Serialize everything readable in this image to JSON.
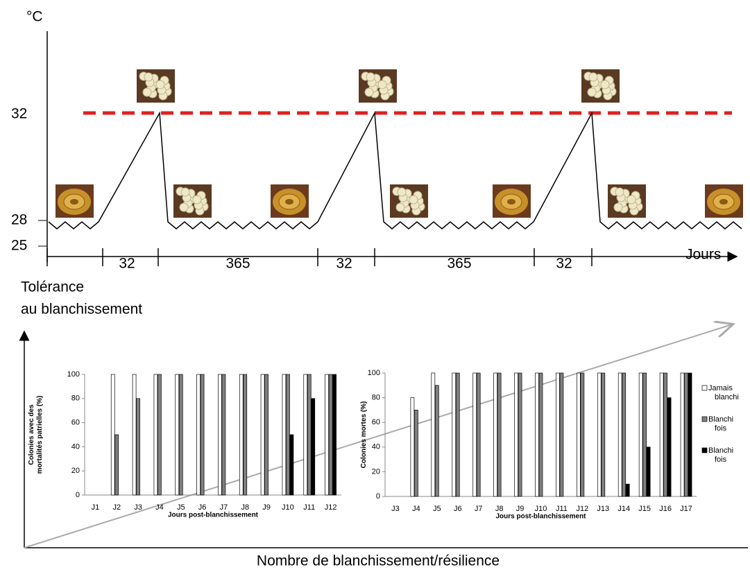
{
  "diagram": {
    "y_unit": "°C",
    "y_labels": [
      "32",
      "28",
      "25"
    ],
    "x_label": "Jours",
    "intervals": [
      "32",
      "365",
      "32",
      "365",
      "32"
    ]
  },
  "bottom": {
    "y_axis_label": [
      "Tolérance",
      "au blanchissement"
    ],
    "x_axis_label": "Nombre de blanchissement/résilience"
  },
  "chart_data": [
    {
      "type": "bar",
      "y_label": "Colonies avec des mortalités patrielles (%)",
      "x_label": "Jours post-blanchissement",
      "categories": [
        "J1",
        "J2",
        "J3",
        "J4",
        "J5",
        "J6",
        "J7",
        "J8",
        "J9",
        "J10",
        "J11",
        "J12"
      ],
      "ylim": [
        0,
        100
      ],
      "yticks": [
        0,
        20,
        40,
        60,
        80,
        100
      ],
      "series": [
        {
          "color": "#ffffff",
          "values": [
            null,
            100,
            100,
            100,
            100,
            100,
            100,
            100,
            100,
            100,
            100,
            100
          ]
        },
        {
          "color": "#808080",
          "values": [
            null,
            50,
            80,
            100,
            100,
            100,
            100,
            100,
            100,
            100,
            100,
            100
          ]
        },
        {
          "color": "#000000",
          "values": [
            null,
            null,
            null,
            null,
            null,
            null,
            null,
            null,
            null,
            50,
            80,
            100
          ]
        }
      ]
    },
    {
      "type": "bar",
      "y_label": "Colonies mortes (%)",
      "x_label": "Jours post-blanchissement",
      "categories": [
        "J3",
        "J4",
        "J5",
        "J6",
        "J7",
        "J8",
        "J9",
        "J10",
        "J11",
        "J12",
        "J13",
        "J14",
        "J15",
        "J16",
        "J17"
      ],
      "ylim": [
        0,
        100
      ],
      "yticks": [
        0,
        20,
        40,
        60,
        80,
        100
      ],
      "series": [
        {
          "name": "Jamais blanchi",
          "color": "#ffffff",
          "values": [
            null,
            80,
            100,
            100,
            100,
            100,
            100,
            100,
            100,
            100,
            100,
            100,
            100,
            100,
            100
          ]
        },
        {
          "name": "Blanchi fois",
          "color": "#808080",
          "values": [
            null,
            70,
            90,
            100,
            100,
            100,
            100,
            100,
            100,
            100,
            100,
            100,
            100,
            100,
            100
          ]
        },
        {
          "name": "Blanchi fois",
          "color": "#000000",
          "values": [
            null,
            null,
            null,
            null,
            null,
            null,
            null,
            null,
            null,
            null,
            null,
            10,
            40,
            80,
            100
          ]
        }
      ]
    }
  ]
}
